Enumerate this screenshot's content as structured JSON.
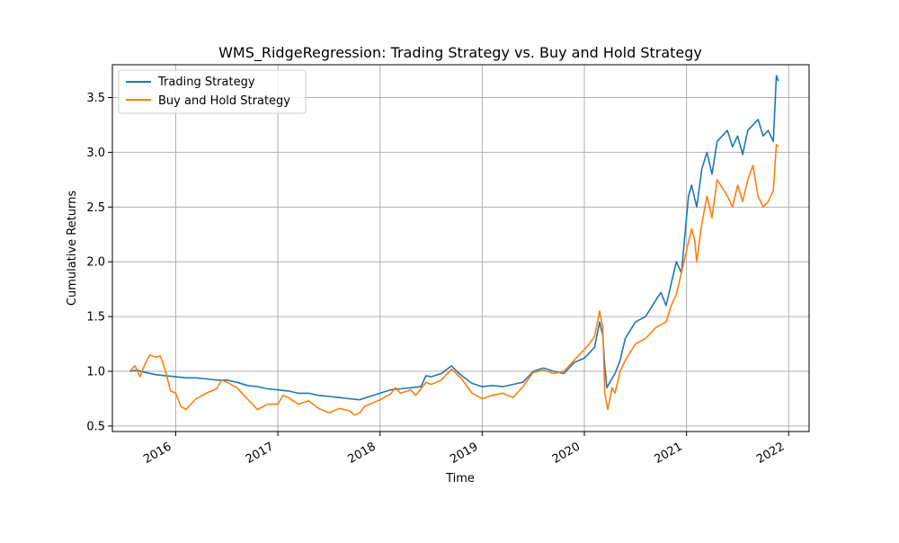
{
  "chart_data": {
    "type": "line",
    "title": "WMS_RidgeRegression: Trading Strategy vs. Buy and Hold Strategy",
    "xlabel": "Time",
    "ylabel": "Cumulative Returns",
    "xlim": [
      2015.38,
      2022.2
    ],
    "ylim": [
      0.45,
      3.8
    ],
    "x_ticks": [
      2016,
      2017,
      2018,
      2019,
      2020,
      2021,
      2022
    ],
    "x_tick_labels": [
      "2016",
      "2017",
      "2018",
      "2019",
      "2020",
      "2021",
      "2022"
    ],
    "y_ticks": [
      0.5,
      1.0,
      1.5,
      2.0,
      2.5,
      3.0,
      3.5
    ],
    "y_tick_labels": [
      "0.5",
      "1.0",
      "1.5",
      "2.0",
      "2.5",
      "3.0",
      "3.5"
    ],
    "grid": true,
    "legend_position": "top-left",
    "series": [
      {
        "name": "Trading Strategy",
        "color": "#1f77b4",
        "points": [
          [
            2015.55,
            1.0
          ],
          [
            2015.62,
            1.01
          ],
          [
            2015.7,
            0.99
          ],
          [
            2015.8,
            0.97
          ],
          [
            2015.9,
            0.96
          ],
          [
            2016.0,
            0.95
          ],
          [
            2016.1,
            0.94
          ],
          [
            2016.2,
            0.94
          ],
          [
            2016.3,
            0.93
          ],
          [
            2016.4,
            0.92
          ],
          [
            2016.5,
            0.92
          ],
          [
            2016.6,
            0.9
          ],
          [
            2016.7,
            0.87
          ],
          [
            2016.8,
            0.86
          ],
          [
            2016.9,
            0.84
          ],
          [
            2017.0,
            0.83
          ],
          [
            2017.1,
            0.82
          ],
          [
            2017.2,
            0.8
          ],
          [
            2017.3,
            0.8
          ],
          [
            2017.4,
            0.78
          ],
          [
            2017.5,
            0.77
          ],
          [
            2017.6,
            0.76
          ],
          [
            2017.7,
            0.75
          ],
          [
            2017.8,
            0.74
          ],
          [
            2017.9,
            0.77
          ],
          [
            2018.0,
            0.8
          ],
          [
            2018.1,
            0.83
          ],
          [
            2018.2,
            0.84
          ],
          [
            2018.3,
            0.85
          ],
          [
            2018.4,
            0.86
          ],
          [
            2018.45,
            0.96
          ],
          [
            2018.5,
            0.95
          ],
          [
            2018.6,
            0.98
          ],
          [
            2018.7,
            1.05
          ],
          [
            2018.75,
            1.0
          ],
          [
            2018.8,
            0.96
          ],
          [
            2018.9,
            0.89
          ],
          [
            2019.0,
            0.86
          ],
          [
            2019.1,
            0.87
          ],
          [
            2019.2,
            0.86
          ],
          [
            2019.3,
            0.88
          ],
          [
            2019.4,
            0.9
          ],
          [
            2019.5,
            1.0
          ],
          [
            2019.6,
            1.03
          ],
          [
            2019.7,
            1.0
          ],
          [
            2019.8,
            0.98
          ],
          [
            2019.9,
            1.08
          ],
          [
            2020.0,
            1.12
          ],
          [
            2020.05,
            1.17
          ],
          [
            2020.1,
            1.22
          ],
          [
            2020.15,
            1.45
          ],
          [
            2020.18,
            1.33
          ],
          [
            2020.2,
            1.05
          ],
          [
            2020.22,
            0.85
          ],
          [
            2020.25,
            0.9
          ],
          [
            2020.3,
            0.98
          ],
          [
            2020.35,
            1.1
          ],
          [
            2020.4,
            1.3
          ],
          [
            2020.5,
            1.45
          ],
          [
            2020.6,
            1.5
          ],
          [
            2020.7,
            1.65
          ],
          [
            2020.75,
            1.72
          ],
          [
            2020.8,
            1.6
          ],
          [
            2020.9,
            2.0
          ],
          [
            2020.95,
            1.9
          ],
          [
            2021.0,
            2.4
          ],
          [
            2021.02,
            2.6
          ],
          [
            2021.05,
            2.7
          ],
          [
            2021.1,
            2.5
          ],
          [
            2021.15,
            2.85
          ],
          [
            2021.2,
            3.0
          ],
          [
            2021.25,
            2.8
          ],
          [
            2021.3,
            3.1
          ],
          [
            2021.4,
            3.2
          ],
          [
            2021.45,
            3.05
          ],
          [
            2021.5,
            3.15
          ],
          [
            2021.55,
            2.98
          ],
          [
            2021.6,
            3.2
          ],
          [
            2021.7,
            3.3
          ],
          [
            2021.75,
            3.15
          ],
          [
            2021.8,
            3.2
          ],
          [
            2021.85,
            3.1
          ],
          [
            2021.88,
            3.7
          ],
          [
            2021.9,
            3.65
          ]
        ]
      },
      {
        "name": "Buy and Hold Strategy",
        "color": "#ff7f0e",
        "points": [
          [
            2015.55,
            1.0
          ],
          [
            2015.6,
            1.05
          ],
          [
            2015.65,
            0.95
          ],
          [
            2015.7,
            1.07
          ],
          [
            2015.75,
            1.15
          ],
          [
            2015.8,
            1.13
          ],
          [
            2015.85,
            1.14
          ],
          [
            2015.9,
            1.0
          ],
          [
            2015.95,
            0.82
          ],
          [
            2016.0,
            0.8
          ],
          [
            2016.05,
            0.68
          ],
          [
            2016.1,
            0.65
          ],
          [
            2016.15,
            0.7
          ],
          [
            2016.2,
            0.75
          ],
          [
            2016.3,
            0.8
          ],
          [
            2016.4,
            0.84
          ],
          [
            2016.45,
            0.92
          ],
          [
            2016.5,
            0.9
          ],
          [
            2016.6,
            0.85
          ],
          [
            2016.65,
            0.8
          ],
          [
            2016.7,
            0.75
          ],
          [
            2016.8,
            0.65
          ],
          [
            2016.9,
            0.7
          ],
          [
            2017.0,
            0.7
          ],
          [
            2017.05,
            0.78
          ],
          [
            2017.1,
            0.76
          ],
          [
            2017.2,
            0.7
          ],
          [
            2017.3,
            0.73
          ],
          [
            2017.4,
            0.66
          ],
          [
            2017.5,
            0.62
          ],
          [
            2017.6,
            0.66
          ],
          [
            2017.7,
            0.64
          ],
          [
            2017.75,
            0.6
          ],
          [
            2017.8,
            0.62
          ],
          [
            2017.85,
            0.68
          ],
          [
            2017.9,
            0.7
          ],
          [
            2018.0,
            0.74
          ],
          [
            2018.1,
            0.79
          ],
          [
            2018.15,
            0.85
          ],
          [
            2018.2,
            0.8
          ],
          [
            2018.3,
            0.83
          ],
          [
            2018.35,
            0.78
          ],
          [
            2018.45,
            0.9
          ],
          [
            2018.5,
            0.88
          ],
          [
            2018.6,
            0.92
          ],
          [
            2018.7,
            1.02
          ],
          [
            2018.8,
            0.93
          ],
          [
            2018.9,
            0.8
          ],
          [
            2019.0,
            0.75
          ],
          [
            2019.1,
            0.78
          ],
          [
            2019.2,
            0.8
          ],
          [
            2019.3,
            0.76
          ],
          [
            2019.4,
            0.86
          ],
          [
            2019.5,
            0.99
          ],
          [
            2019.6,
            1.01
          ],
          [
            2019.7,
            0.98
          ],
          [
            2019.8,
            1.0
          ],
          [
            2019.9,
            1.1
          ],
          [
            2020.0,
            1.2
          ],
          [
            2020.05,
            1.25
          ],
          [
            2020.1,
            1.32
          ],
          [
            2020.15,
            1.55
          ],
          [
            2020.18,
            1.4
          ],
          [
            2020.2,
            0.8
          ],
          [
            2020.23,
            0.65
          ],
          [
            2020.27,
            0.85
          ],
          [
            2020.3,
            0.8
          ],
          [
            2020.35,
            1.0
          ],
          [
            2020.4,
            1.1
          ],
          [
            2020.5,
            1.25
          ],
          [
            2020.6,
            1.3
          ],
          [
            2020.7,
            1.4
          ],
          [
            2020.8,
            1.45
          ],
          [
            2020.85,
            1.6
          ],
          [
            2020.9,
            1.7
          ],
          [
            2020.95,
            1.9
          ],
          [
            2021.0,
            2.1
          ],
          [
            2021.05,
            2.3
          ],
          [
            2021.08,
            2.2
          ],
          [
            2021.1,
            2.0
          ],
          [
            2021.15,
            2.35
          ],
          [
            2021.2,
            2.6
          ],
          [
            2021.25,
            2.4
          ],
          [
            2021.3,
            2.75
          ],
          [
            2021.4,
            2.6
          ],
          [
            2021.45,
            2.5
          ],
          [
            2021.5,
            2.7
          ],
          [
            2021.55,
            2.55
          ],
          [
            2021.6,
            2.75
          ],
          [
            2021.65,
            2.88
          ],
          [
            2021.7,
            2.6
          ],
          [
            2021.75,
            2.5
          ],
          [
            2021.8,
            2.55
          ],
          [
            2021.85,
            2.65
          ],
          [
            2021.88,
            3.07
          ],
          [
            2021.9,
            3.05
          ]
        ]
      }
    ]
  }
}
